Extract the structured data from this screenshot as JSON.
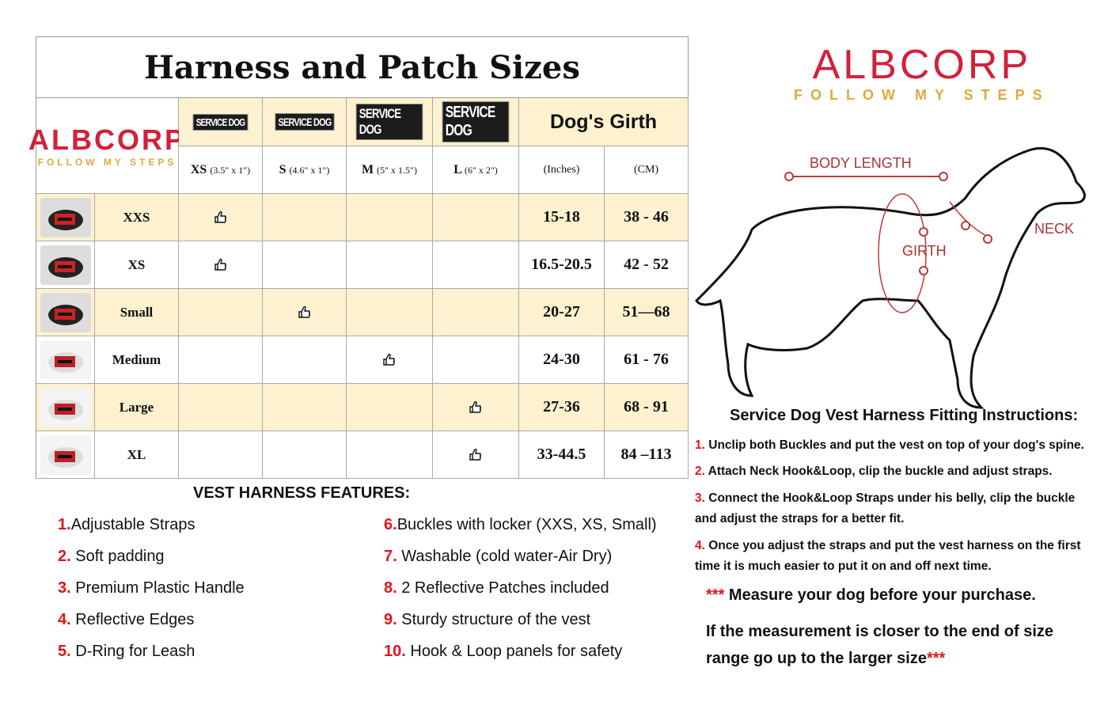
{
  "table": {
    "title": "Harness and Patch Sizes",
    "logo": {
      "name": "ALBCORP",
      "tagline": "FOLLOW MY STEPS"
    },
    "patch_label": "SERVICE DOG",
    "girth_header": "Dog's Girth",
    "sub_headers": [
      {
        "size": "XS",
        "dims": "(3.5\" x 1\")"
      },
      {
        "size": "S",
        "dims": "(4.6\" x 1\")"
      },
      {
        "size": "M",
        "dims": "(5\" x 1.5\")"
      },
      {
        "size": "L",
        "dims": "(6\" x 2\")"
      }
    ],
    "units": [
      "(Inches)",
      "(CM)"
    ],
    "rows": [
      {
        "size": "XXS",
        "patch_col": 0,
        "inches": "15-18",
        "cm": "38 - 46"
      },
      {
        "size": "XS",
        "patch_col": 0,
        "inches": "16.5-20.5",
        "cm": "42 - 52"
      },
      {
        "size": "Small",
        "patch_col": 1,
        "inches": "20-27",
        "cm": "51—68"
      },
      {
        "size": "Medium",
        "patch_col": 2,
        "inches": "24-30",
        "cm": "61 - 76"
      },
      {
        "size": "Large",
        "patch_col": 3,
        "inches": "27-36",
        "cm": "68 - 91"
      },
      {
        "size": "XL",
        "patch_col": 3,
        "inches": "33-44.5",
        "cm": "84 –113"
      }
    ]
  },
  "features": {
    "title": "VEST HARNESS FEATURES:",
    "items": [
      {
        "num": "1.",
        "text": "Adjustable Straps"
      },
      {
        "num": "2.",
        "text": " Soft padding"
      },
      {
        "num": "3.",
        "text": " Premium Plastic Handle"
      },
      {
        "num": "4.",
        "text": " Reflective Edges"
      },
      {
        "num": "5.",
        "text": " D-Ring for Leash"
      },
      {
        "num": "6.",
        "text": "Buckles with locker (XXS, XS, Small)"
      },
      {
        "num": "7.",
        "text": " Washable (cold water-Air Dry)"
      },
      {
        "num": "8.",
        "text": " 2 Reflective Patches included"
      },
      {
        "num": "9.",
        "text": " Sturdy structure of the vest"
      },
      {
        "num": "10.",
        "text": " Hook & Loop panels for safety"
      }
    ]
  },
  "brand": {
    "name": "ALBCORP",
    "tagline": "FOLLOW MY STEPS"
  },
  "diagram": {
    "body_length": "BODY LENGTH",
    "girth": "GIRTH",
    "neck": "NECK"
  },
  "instructions": {
    "title": "Service Dog Vest Harness  Fitting Instructions:",
    "steps": [
      {
        "num": "1.",
        "text": " Unclip both Buckles and put the vest on top of your dog's spine."
      },
      {
        "num": "2.",
        "text": " Attach Neck Hook&Loop, clip the buckle and adjust straps."
      },
      {
        "num": "3.",
        "text": " Connect the Hook&Loop Straps under his belly, clip the buckle and adjust the straps for a better fit."
      },
      {
        "num": "4.",
        "text": " Once you  adjust the straps and put the vest harness on the first time it is much easier to put it on and off next time."
      }
    ],
    "note_stars": "***",
    "note1": " Measure your dog before your purchase.",
    "note2": "If the measurement is closer to the end of size range go up to the larger size"
  },
  "colors": {
    "accent_red": "#e3141b",
    "brand_red": "#d3203a",
    "brand_gold": "#e0a83a",
    "row_cream": "#fdf1cf"
  }
}
